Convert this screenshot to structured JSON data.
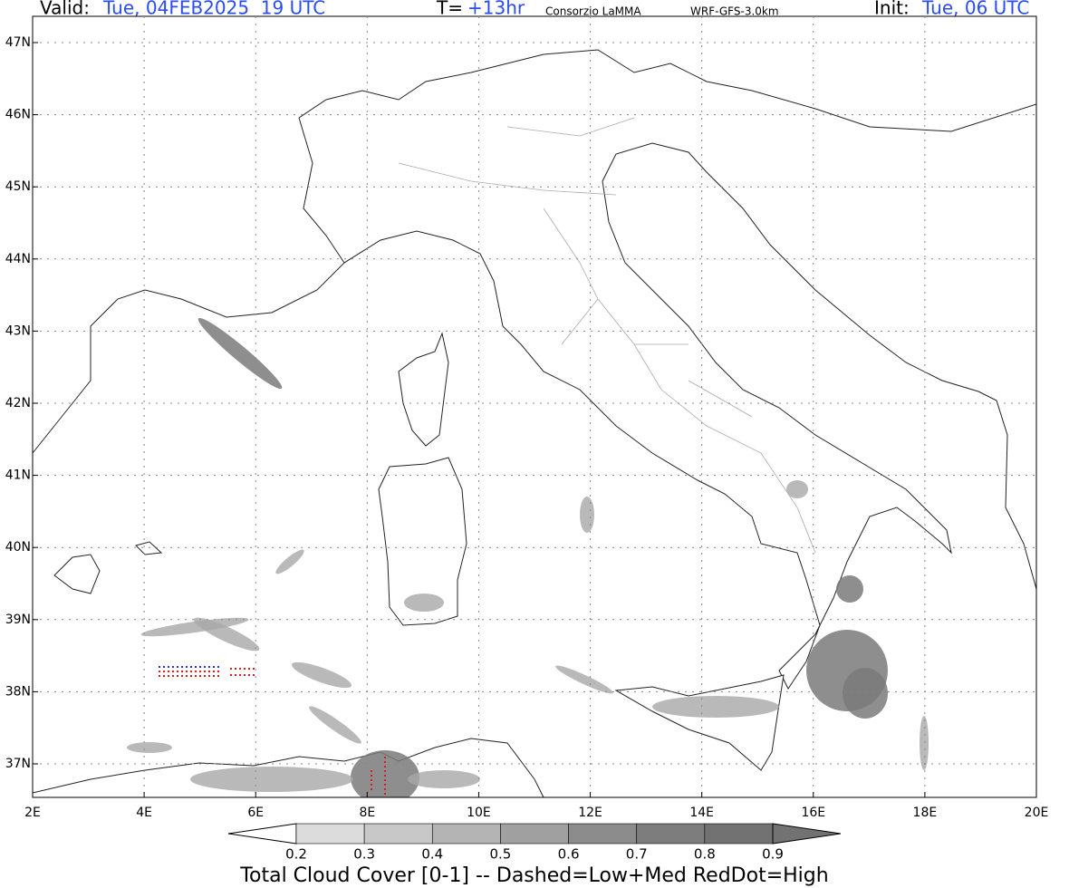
{
  "header": {
    "valid_label": "Valid:",
    "valid_value": "Tue, 04FEB2025  19 UTC",
    "t_label": "T=",
    "t_value": "+13hr",
    "source": "Consorzio LaMMA",
    "model": "WRF-GFS-3.0km",
    "init_label": "Init:",
    "init_value": "Tue, 06 UTC"
  },
  "map": {
    "lat_labels": [
      "47N",
      "46N",
      "45N",
      "44N",
      "43N",
      "42N",
      "41N",
      "40N",
      "39N",
      "38N",
      "37N"
    ],
    "lon_labels": [
      "2E",
      "4E",
      "6E",
      "8E",
      "10E",
      "12E",
      "14E",
      "16E",
      "18E",
      "20E"
    ]
  },
  "colorbar": {
    "levels": [
      0.2,
      0.3,
      0.4,
      0.5,
      0.6,
      0.7,
      0.8,
      0.9
    ],
    "colors": [
      "#dcdcdc",
      "#c8c8c8",
      "#b4b4b4",
      "#a0a0a0",
      "#8c8c8c",
      "#7d7d7d",
      "#727272"
    ],
    "title": "Total Cloud Cover [0-1] -- Dashed=Low+Med RedDot=High"
  }
}
